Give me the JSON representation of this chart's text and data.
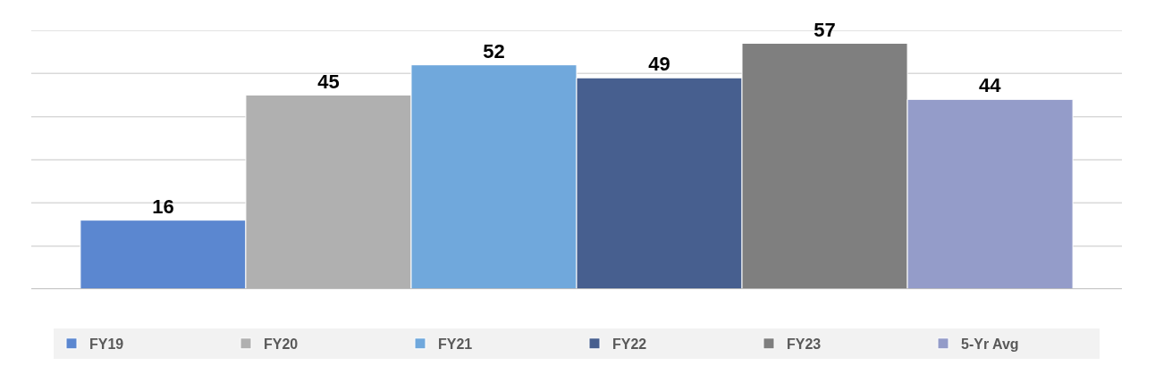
{
  "chart_data": {
    "type": "bar",
    "categories": [
      null
    ],
    "series": [
      {
        "name": "FY19",
        "color": "#5b87d0",
        "values": [
          16
        ]
      },
      {
        "name": "FY20",
        "color": "#b0b0b0",
        "values": [
          45
        ]
      },
      {
        "name": "FY21",
        "color": "#70a8dc",
        "values": [
          52
        ]
      },
      {
        "name": "FY22",
        "color": "#475f8f",
        "values": [
          49
        ]
      },
      {
        "name": "FY23",
        "color": "#7f7f7f",
        "values": [
          57
        ]
      },
      {
        "name": "5-Yr Avg",
        "color": "#949cc9",
        "values": [
          44
        ]
      }
    ],
    "ylim": [
      0,
      60
    ],
    "yticks": [
      {
        "value": 0,
        "label": null
      },
      {
        "value": 10,
        "label": null
      },
      {
        "value": 20,
        "label": null
      },
      {
        "value": 30,
        "label": null
      },
      {
        "value": 40,
        "label": null
      },
      {
        "value": 50,
        "label": null
      },
      {
        "value": 60,
        "label": null
      }
    ],
    "grid": "y",
    "legend": "bottom",
    "data_labels": true
  }
}
